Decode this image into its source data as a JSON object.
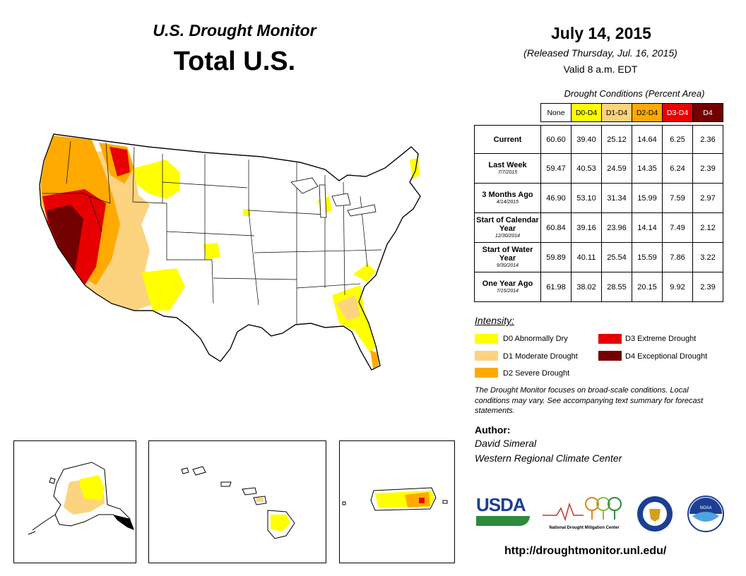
{
  "header": {
    "monitor_title": "U.S. Drought Monitor",
    "region_title": "Total U.S.",
    "date": "July 14, 2015",
    "released": "(Released Thursday, Jul. 16, 2015)",
    "valid": "Valid 8 a.m. EDT"
  },
  "table": {
    "caption": "Drought Conditions (Percent Area)",
    "columns": [
      {
        "label": "None",
        "color": "#ffffff",
        "text_color": "#000000"
      },
      {
        "label": "D0-D4",
        "color": "#ffff00",
        "text_color": "#000000"
      },
      {
        "label": "D1-D4",
        "color": "#fcd37f",
        "text_color": "#000000"
      },
      {
        "label": "D2-D4",
        "color": "#ffaa00",
        "text_color": "#000000"
      },
      {
        "label": "D3-D4",
        "color": "#e60000",
        "text_color": "#ffffff"
      },
      {
        "label": "D4",
        "color": "#730000",
        "text_color": "#ffffff"
      }
    ],
    "rows": [
      {
        "label": "Current",
        "date": "",
        "values": [
          "60.60",
          "39.40",
          "25.12",
          "14.64",
          "6.25",
          "2.36"
        ]
      },
      {
        "label": "Last Week",
        "date": "7/7/2015",
        "values": [
          "59.47",
          "40.53",
          "24.59",
          "14.35",
          "6.24",
          "2.39"
        ]
      },
      {
        "label": "3 Months Ago",
        "date": "4/14/2015",
        "values": [
          "46.90",
          "53.10",
          "31.34",
          "15.99",
          "7.59",
          "2.97"
        ]
      },
      {
        "label": "Start of Calendar Year",
        "date": "12/30/2014",
        "values": [
          "60.84",
          "39.16",
          "23.96",
          "14.14",
          "7.49",
          "2.12"
        ]
      },
      {
        "label": "Start of Water Year",
        "date": "9/30/2014",
        "values": [
          "59.89",
          "40.11",
          "25.54",
          "15.59",
          "7.86",
          "3.22"
        ]
      },
      {
        "label": "One Year Ago",
        "date": "7/15/2014",
        "values": [
          "61.98",
          "38.02",
          "28.55",
          "20.15",
          "9.92",
          "2.39"
        ]
      }
    ]
  },
  "legend": {
    "title": "Intensity:",
    "items": [
      {
        "label": "D0 Abnormally Dry",
        "color": "#ffff00"
      },
      {
        "label": "D1 Moderate Drought",
        "color": "#fcd37f"
      },
      {
        "label": "D2 Severe Drought",
        "color": "#ffaa00"
      },
      {
        "label": "D3 Extreme Drought",
        "color": "#e60000"
      },
      {
        "label": "D4 Exceptional Drought",
        "color": "#730000"
      }
    ]
  },
  "note": "The Drought Monitor focuses on broad-scale conditions. Local conditions may vary. See accompanying text summary for forecast statements.",
  "author": {
    "label": "Author:",
    "name": "David Simeral",
    "org": "Western Regional Climate Center"
  },
  "logos": {
    "usda": "USDA",
    "ndmc": "National Drought Mitigation Center",
    "noaa": "NOAA"
  },
  "url": "http://droughtmonitor.unl.edu/"
}
